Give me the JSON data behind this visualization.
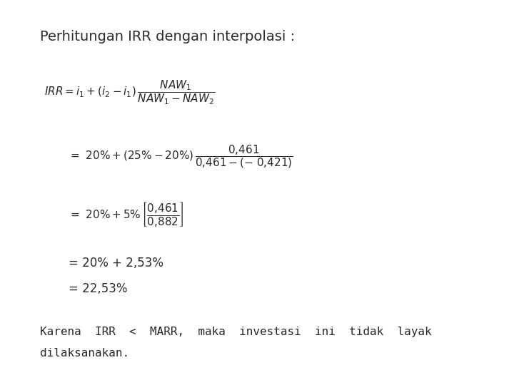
{
  "background_color": "#e8a0a0",
  "outer_bg": "#ffffff",
  "title": "Perhitungan IRR dengan interpolasi :",
  "title_fontsize": 14,
  "text_color": "#2a2a2a",
  "footer_line1": "Karena  IRR  <  MARR,  maka  investasi  ini  tidak  layak",
  "footer_line2": "dilaksanakan."
}
